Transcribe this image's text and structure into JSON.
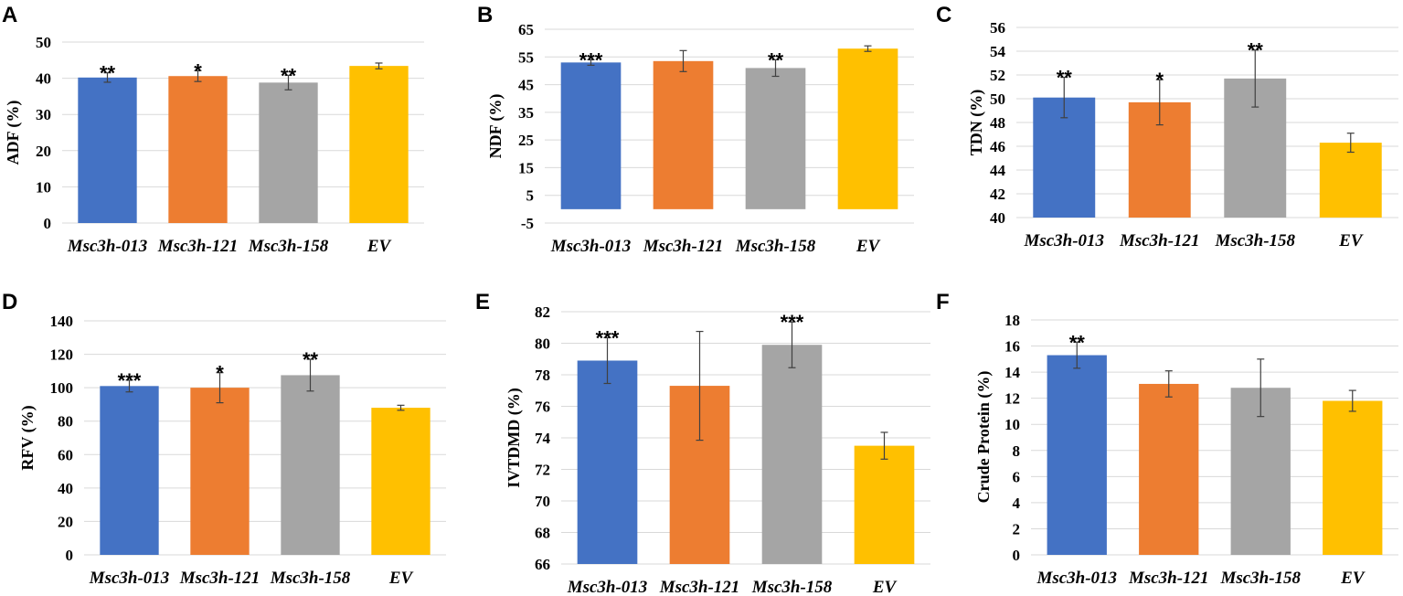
{
  "colors": [
    "#4472C4",
    "#ED7D31",
    "#A5A5A5",
    "#FFC000"
  ],
  "chart_data": [
    {
      "type": "bar",
      "panel": "A",
      "ylabel": "ADF (%)",
      "categories": [
        "Msc3h-013",
        "Msc3h-121",
        "Msc3h-158",
        "EV"
      ],
      "values": [
        40.2,
        40.6,
        38.8,
        43.4
      ],
      "errors": [
        1.3,
        1.5,
        2.0,
        0.8
      ],
      "significance": [
        "**",
        "*",
        "**",
        ""
      ],
      "ylim": [
        0,
        50
      ],
      "yticks": [
        "0",
        "10",
        "20",
        "30",
        "40",
        "50"
      ]
    },
    {
      "type": "bar",
      "panel": "B",
      "ylabel": "NDF (%)",
      "categories": [
        "Msc3h-013",
        "Msc3h-121",
        "Msc3h-158",
        "EV"
      ],
      "values": [
        53.0,
        53.5,
        51.0,
        58.0
      ],
      "errors": [
        1.0,
        3.8,
        3.0,
        1.0
      ],
      "significance": [
        "***",
        "",
        "**",
        ""
      ],
      "ylim": [
        -5,
        65
      ],
      "yticks": [
        "-5",
        "5",
        "15",
        "25",
        "35",
        "45",
        "55",
        "65"
      ]
    },
    {
      "type": "bar",
      "panel": "C",
      "ylabel": "TDN (%)",
      "categories": [
        "Msc3h-013",
        "Msc3h-121",
        "Msc3h-158",
        "EV"
      ],
      "values": [
        50.1,
        49.7,
        51.7,
        46.3
      ],
      "errors": [
        1.7,
        1.9,
        2.4,
        0.8
      ],
      "significance": [
        "**",
        "*",
        "**",
        ""
      ],
      "ylim": [
        40,
        56
      ],
      "yticks": [
        "40",
        "42",
        "44",
        "46",
        "48",
        "50",
        "52",
        "54",
        "56"
      ]
    },
    {
      "type": "bar",
      "panel": "D",
      "ylabel": "RFV (%)",
      "categories": [
        "Msc3h-013",
        "Msc3h-121",
        "Msc3h-158",
        "EV"
      ],
      "values": [
        101,
        100,
        107.5,
        88
      ],
      "errors": [
        3.5,
        9.0,
        9.5,
        1.5
      ],
      "significance": [
        "***",
        "*",
        "**",
        ""
      ],
      "ylim": [
        0,
        140
      ],
      "yticks": [
        "0",
        "20",
        "40",
        "60",
        "80",
        "100",
        "120",
        "140"
      ]
    },
    {
      "type": "bar",
      "panel": "E",
      "ylabel": "IVTDMD (%)",
      "categories": [
        "Msc3h-013",
        "Msc3h-121",
        "Msc3h-158",
        "EV"
      ],
      "values": [
        78.9,
        77.3,
        79.9,
        73.5
      ],
      "errors": [
        1.45,
        3.45,
        1.45,
        0.85
      ],
      "significance": [
        "***",
        "",
        "***",
        ""
      ],
      "ylim": [
        66,
        82
      ],
      "yticks": [
        "66",
        "68",
        "70",
        "72",
        "74",
        "76",
        "78",
        "80",
        "82"
      ]
    },
    {
      "type": "bar",
      "panel": "F",
      "ylabel": "Crude Protein (%)",
      "categories": [
        "Msc3h-013",
        "Msc3h-121",
        "Msc3h-158",
        "EV"
      ],
      "values": [
        15.3,
        13.1,
        12.8,
        11.8
      ],
      "errors": [
        1.0,
        1.0,
        2.2,
        0.8
      ],
      "significance": [
        "**",
        "",
        "",
        ""
      ],
      "ylim": [
        0,
        18
      ],
      "yticks": [
        "0",
        "2",
        "4",
        "6",
        "8",
        "10",
        "12",
        "14",
        "16",
        "18"
      ]
    }
  ]
}
